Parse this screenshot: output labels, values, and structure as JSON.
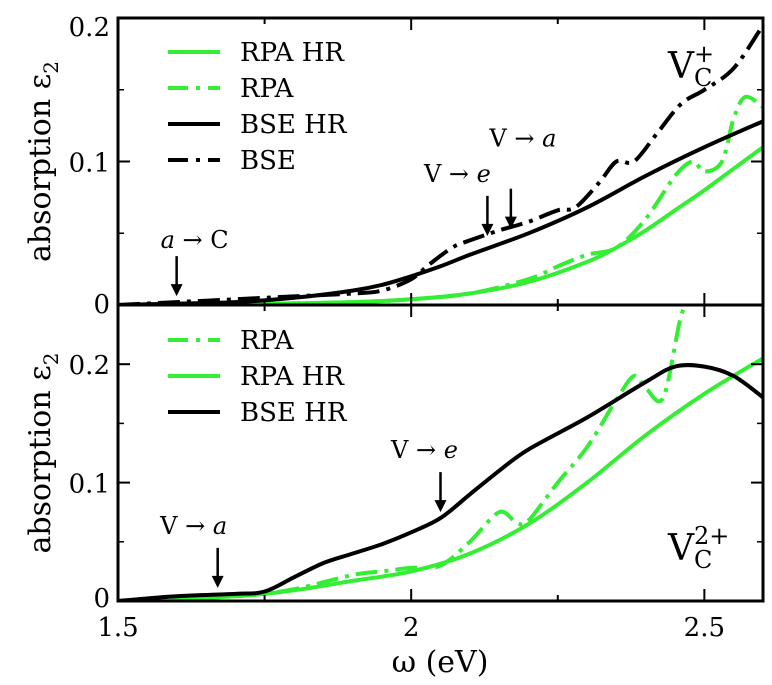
{
  "figure": {
    "xlabel_symbol": "ω",
    "xlabel_unit": "(eV)",
    "x_ticks": [
      "1.5",
      "2",
      "2.5"
    ]
  },
  "colors": {
    "green": "#33ee33",
    "black": "#000000"
  },
  "chart_data": [
    {
      "type": "line",
      "panel": "top",
      "ylabel": "absorption ε₂",
      "ylabel_parts": {
        "text": "absorption ε",
        "sub": "2"
      },
      "xlim": [
        1.5,
        2.6
      ],
      "ylim": [
        0,
        0.2
      ],
      "y_ticks": [
        "0",
        "0.1",
        "0.2"
      ],
      "corner_label": {
        "base": "V",
        "sub": "C",
        "sup": "+"
      },
      "legend": [
        "RPA HR",
        "RPA",
        "BSE HR",
        "BSE"
      ],
      "annotations": [
        {
          "pre": "",
          "from": "a",
          "arrow": "→",
          "to": "C",
          "x": 1.6,
          "y_tip": 0.002
        },
        {
          "pre": "V",
          "from": "",
          "arrow": "→",
          "to": "e",
          "x": 2.13,
          "y_tip": 0.044
        },
        {
          "pre": "V",
          "from": "",
          "arrow": "→",
          "to": "a",
          "x": 2.17,
          "y_tip": 0.049
        }
      ],
      "series": [
        {
          "name": "RPA HR",
          "color": "#33ee33",
          "dash": "solid",
          "x": [
            1.5,
            1.7,
            1.9,
            2.0,
            2.1,
            2.2,
            2.3,
            2.35,
            2.4,
            2.45,
            2.5,
            2.55,
            2.6
          ],
          "y": [
            0.0,
            0.0005,
            0.002,
            0.004,
            0.008,
            0.016,
            0.03,
            0.04,
            0.052,
            0.066,
            0.08,
            0.095,
            0.11
          ]
        },
        {
          "name": "RPA",
          "color": "#33ee33",
          "dash": "dashdot",
          "x": [
            1.5,
            1.7,
            1.9,
            2.0,
            2.1,
            2.2,
            2.25,
            2.3,
            2.35,
            2.4,
            2.45,
            2.48,
            2.5,
            2.53,
            2.55,
            2.57,
            2.6
          ],
          "y": [
            0.0,
            0.0005,
            0.002,
            0.004,
            0.008,
            0.018,
            0.027,
            0.035,
            0.04,
            0.06,
            0.09,
            0.1,
            0.093,
            0.1,
            0.13,
            0.145,
            0.138
          ]
        },
        {
          "name": "BSE HR",
          "color": "#000000",
          "dash": "solid",
          "x": [
            1.5,
            1.6,
            1.7,
            1.8,
            1.9,
            1.95,
            2.0,
            2.05,
            2.1,
            2.2,
            2.3,
            2.4,
            2.5,
            2.6
          ],
          "y": [
            0.0,
            0.001,
            0.002,
            0.005,
            0.01,
            0.014,
            0.02,
            0.027,
            0.035,
            0.05,
            0.068,
            0.09,
            0.11,
            0.128
          ]
        },
        {
          "name": "BSE",
          "color": "#000000",
          "dash": "dashdot",
          "x": [
            1.5,
            1.6,
            1.7,
            1.8,
            1.9,
            1.95,
            2.0,
            2.03,
            2.07,
            2.1,
            2.15,
            2.2,
            2.25,
            2.28,
            2.32,
            2.35,
            2.38,
            2.42,
            2.46,
            2.5,
            2.55,
            2.6
          ],
          "y": [
            0.0,
            0.002,
            0.004,
            0.006,
            0.008,
            0.01,
            0.018,
            0.028,
            0.04,
            0.045,
            0.052,
            0.058,
            0.066,
            0.068,
            0.085,
            0.1,
            0.1,
            0.12,
            0.14,
            0.15,
            0.165,
            0.195
          ]
        }
      ]
    },
    {
      "type": "line",
      "panel": "bottom",
      "ylabel": "absorption ε₂",
      "ylabel_parts": {
        "text": "absorption ε",
        "sub": "2"
      },
      "xlim": [
        1.5,
        2.6
      ],
      "ylim": [
        0,
        0.25
      ],
      "y_ticks": [
        "0",
        "0.1",
        "0.2"
      ],
      "corner_label": {
        "base": "V",
        "sub": "C",
        "sup": "2+"
      },
      "legend": [
        "RPA",
        "RPA HR",
        "BSE HR"
      ],
      "annotations": [
        {
          "pre": "V",
          "from": "",
          "arrow": "→",
          "to": "a",
          "x": 1.67,
          "y_tip": 0.006
        },
        {
          "pre": "V",
          "from": "",
          "arrow": "→",
          "to": "e",
          "x": 2.05,
          "y_tip": 0.07
        }
      ],
      "series": [
        {
          "name": "RPA",
          "color": "#33ee33",
          "dash": "dashdot",
          "x": [
            1.5,
            1.7,
            1.8,
            1.9,
            1.95,
            2.0,
            2.05,
            2.1,
            2.15,
            2.18,
            2.2,
            2.25,
            2.3,
            2.35,
            2.38,
            2.4,
            2.43,
            2.46,
            2.48
          ],
          "y": [
            0.0,
            0.004,
            0.01,
            0.022,
            0.025,
            0.028,
            0.03,
            0.05,
            0.075,
            0.066,
            0.068,
            0.1,
            0.13,
            0.17,
            0.19,
            0.18,
            0.172,
            0.24,
            0.26
          ]
        },
        {
          "name": "RPA HR",
          "color": "#33ee33",
          "dash": "solid",
          "x": [
            1.5,
            1.7,
            1.8,
            1.9,
            2.0,
            2.1,
            2.2,
            2.3,
            2.4,
            2.5,
            2.6
          ],
          "y": [
            0.0,
            0.004,
            0.009,
            0.017,
            0.025,
            0.04,
            0.065,
            0.1,
            0.14,
            0.175,
            0.205
          ]
        },
        {
          "name": "BSE HR",
          "color": "#000000",
          "dash": "solid",
          "x": [
            1.5,
            1.6,
            1.7,
            1.75,
            1.8,
            1.85,
            1.9,
            1.95,
            2.0,
            2.05,
            2.1,
            2.15,
            2.2,
            2.3,
            2.4,
            2.45,
            2.5,
            2.55,
            2.6
          ],
          "y": [
            0.0,
            0.004,
            0.006,
            0.008,
            0.02,
            0.032,
            0.04,
            0.048,
            0.058,
            0.07,
            0.09,
            0.11,
            0.128,
            0.155,
            0.185,
            0.198,
            0.198,
            0.19,
            0.172
          ]
        }
      ]
    }
  ]
}
